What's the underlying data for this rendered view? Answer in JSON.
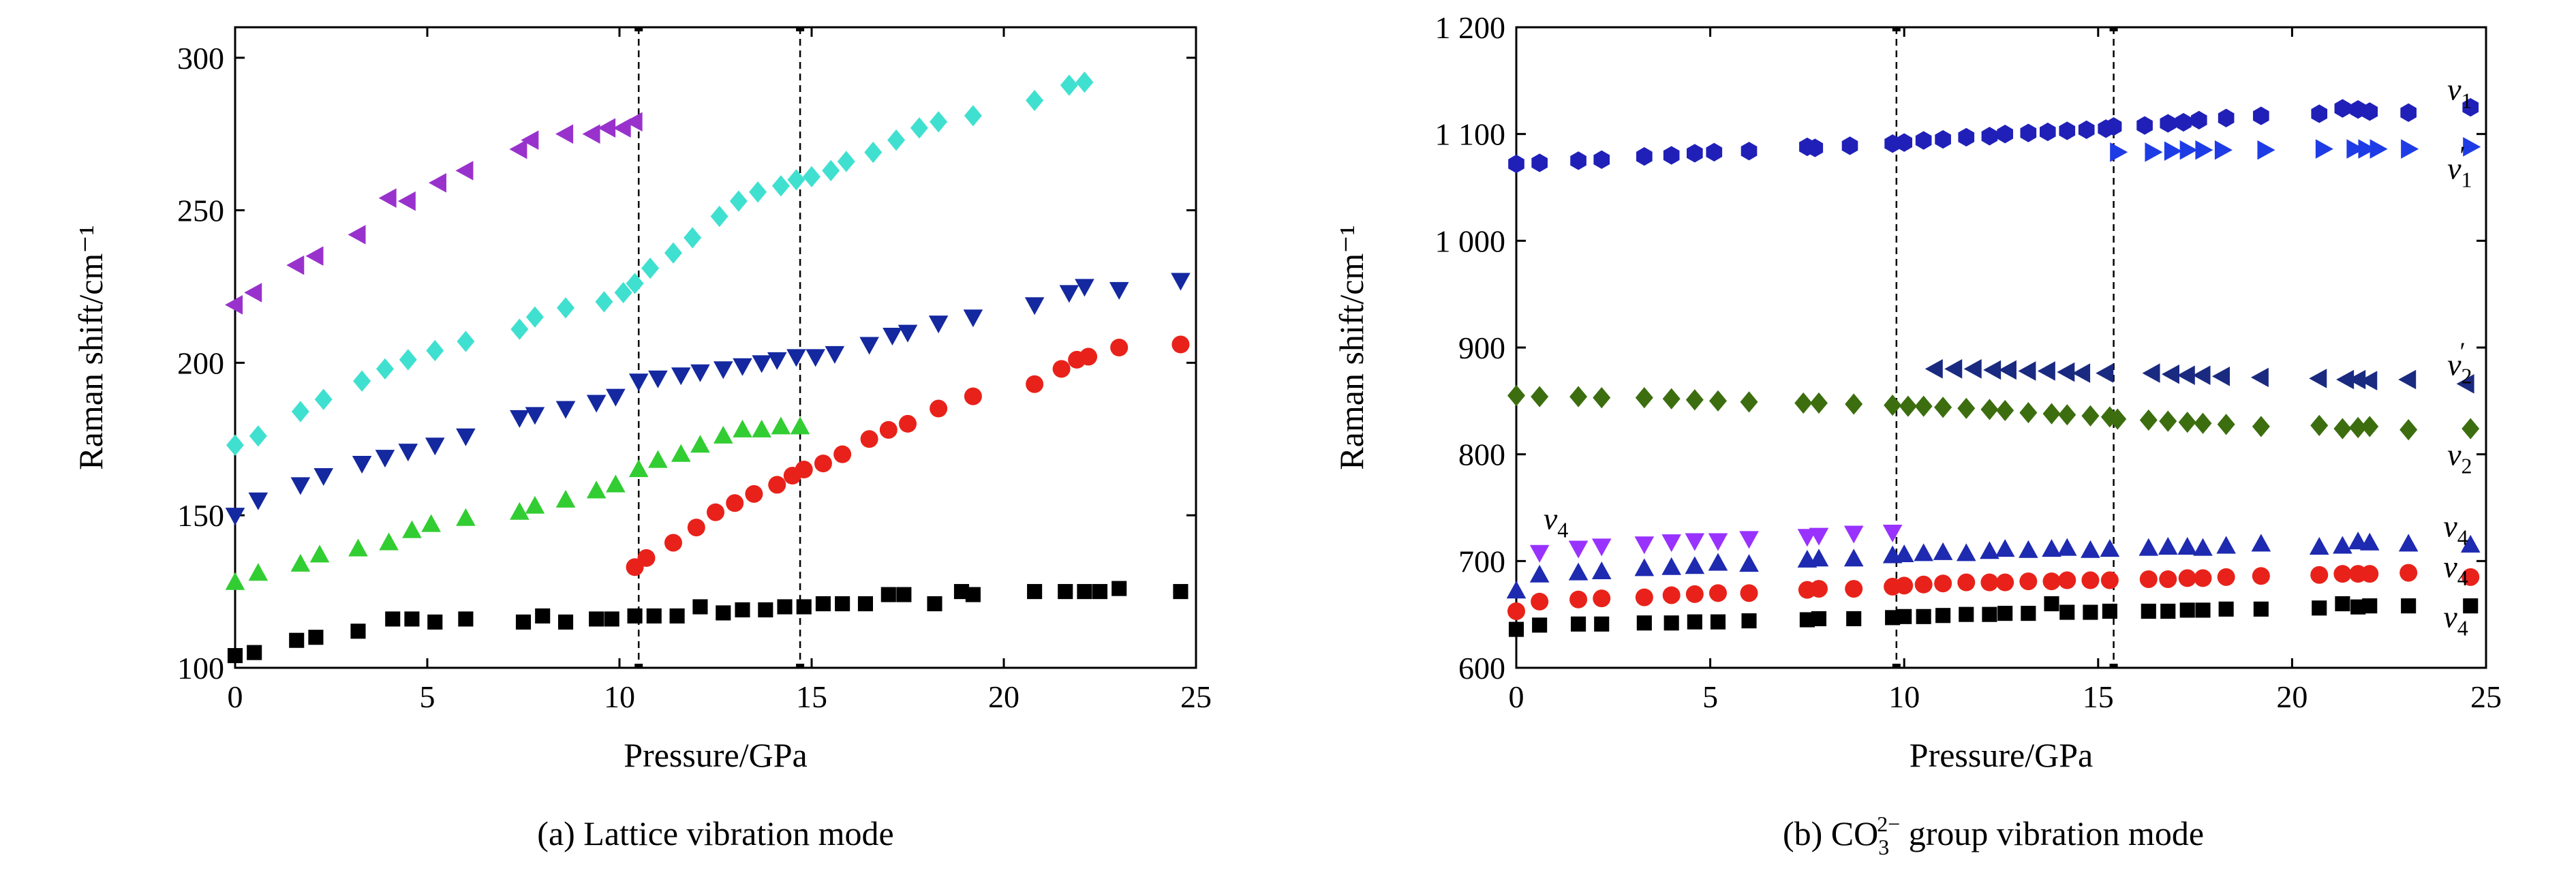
{
  "chart_data": [
    {
      "type": "scatter",
      "caption": "(a) Lattice vibration mode",
      "xlabel": "Pressure/GPa",
      "ylabel": "Raman shift/cm⁻¹",
      "xlim": [
        0,
        25
      ],
      "ylim": [
        100,
        310
      ],
      "xticks": [
        0,
        5,
        10,
        15,
        20,
        25
      ],
      "yticks": [
        100,
        150,
        200,
        250,
        300
      ],
      "vlines": [
        10.5,
        14.7
      ],
      "grid": false,
      "series": [
        {
          "marker": "triangle-left",
          "color": "#9932CC",
          "x": [
            0,
            0.5,
            1.6,
            2.1,
            3.2,
            4.0,
            4.5,
            5.3,
            6.0,
            7.4,
            7.7,
            8.6,
            9.3,
            9.7,
            10.1,
            10.4
          ],
          "y": [
            219,
            223,
            232,
            235,
            242,
            254,
            253,
            259,
            263,
            270,
            273,
            275,
            275,
            277,
            277,
            279
          ]
        },
        {
          "marker": "diamond",
          "color": "#40E0D0",
          "x": [
            0,
            0.6,
            1.7,
            2.3,
            3.3,
            3.9,
            4.5,
            5.2,
            6.0,
            7.4,
            7.8,
            8.6,
            9.6,
            10.1,
            10.4,
            10.8,
            11.4,
            11.9,
            12.6,
            13.1,
            13.6,
            14.2,
            14.6,
            15.0,
            15.5,
            15.9,
            16.6,
            17.2,
            17.8,
            18.3,
            19.2,
            20.8,
            21.7,
            22.1
          ],
          "y": [
            173,
            176,
            184,
            188,
            194,
            198,
            201,
            204,
            207,
            211,
            215,
            218,
            220,
            223,
            226,
            231,
            236,
            241,
            248,
            253,
            256,
            258,
            260,
            261,
            263,
            266,
            269,
            273,
            277,
            279,
            281,
            286,
            291,
            292
          ]
        },
        {
          "marker": "triangle-down",
          "color": "#1428A0",
          "x": [
            0,
            0.6,
            1.7,
            2.3,
            3.3,
            3.9,
            4.5,
            5.2,
            6.0,
            7.4,
            7.8,
            8.6,
            9.4,
            9.9,
            10.5,
            11.0,
            11.6,
            12.1,
            12.7,
            13.2,
            13.7,
            14.1,
            14.6,
            15.1,
            15.6,
            16.5,
            17.1,
            17.5,
            18.3,
            19.2,
            20.8,
            21.7,
            22.1,
            23.0,
            24.6
          ],
          "y": [
            150,
            155,
            160,
            163,
            167,
            169,
            171,
            173,
            176,
            182,
            183,
            185,
            187,
            189,
            194,
            195,
            196,
            197,
            198,
            199,
            200,
            201,
            202,
            202,
            203,
            206,
            209,
            210,
            213,
            215,
            219,
            223,
            225,
            224,
            227
          ]
        },
        {
          "marker": "triangle-up",
          "color": "#32CD32",
          "x": [
            0,
            0.6,
            1.7,
            2.2,
            3.2,
            4.0,
            4.6,
            5.1,
            6.0,
            7.4,
            7.8,
            8.6,
            9.4,
            9.9,
            10.5,
            11.0,
            11.6,
            12.1,
            12.7,
            13.2,
            13.7,
            14.2,
            14.7
          ],
          "y": [
            128,
            131,
            134,
            137,
            139,
            141,
            145,
            147,
            149,
            151,
            153,
            155,
            158,
            160,
            165,
            168,
            170,
            173,
            176,
            178,
            178,
            179,
            179
          ]
        },
        {
          "marker": "circle",
          "color": "#E8221A",
          "x": [
            10.4,
            10.7,
            11.4,
            12.0,
            12.5,
            13.0,
            13.5,
            14.1,
            14.5,
            14.8,
            15.3,
            15.8,
            16.5,
            17.0,
            17.5,
            18.3,
            19.2,
            20.8,
            21.5,
            21.9,
            22.2,
            23.0,
            24.6
          ],
          "y": [
            133,
            136,
            141,
            146,
            151,
            154,
            157,
            160,
            163,
            165,
            167,
            170,
            175,
            178,
            180,
            185,
            189,
            193,
            198,
            201,
            202,
            205,
            206
          ]
        },
        {
          "marker": "square",
          "color": "#000000",
          "x": [
            0,
            0.5,
            1.6,
            2.1,
            3.2,
            4.1,
            4.6,
            5.2,
            6.0,
            7.5,
            8.0,
            8.6,
            9.4,
            9.8,
            10.4,
            10.9,
            11.5,
            12.1,
            12.7,
            13.2,
            13.8,
            14.3,
            14.8,
            15.3,
            15.8,
            16.4,
            17.0,
            17.4,
            18.2,
            18.9,
            19.2,
            20.8,
            21.6,
            22.1,
            22.5,
            23.0,
            24.6
          ],
          "y": [
            104,
            105,
            109,
            110,
            112,
            116,
            116,
            115,
            116,
            115,
            117,
            115,
            116,
            116,
            117,
            117,
            117,
            120,
            118,
            119,
            119,
            120,
            120,
            121,
            121,
            121,
            124,
            124,
            121,
            125,
            124,
            125,
            125,
            125,
            125,
            126,
            125
          ]
        }
      ]
    },
    {
      "type": "scatter",
      "caption_parts": [
        "(b) CO",
        "3",
        "2−",
        " group vibration mode"
      ],
      "xlabel": "Pressure/GPa",
      "ylabel": "Raman shift/cm⁻¹",
      "xlim": [
        0,
        25
      ],
      "ylim": [
        600,
        1200
      ],
      "xticks": [
        0,
        5,
        10,
        15,
        20,
        25
      ],
      "yticks": [
        600,
        700,
        800,
        900,
        1000,
        1100,
        1200
      ],
      "ytick_labels": [
        "600",
        "700",
        "800",
        "900",
        "1 000",
        "1 100",
        "1 200"
      ],
      "vlines": [
        9.8,
        15.4
      ],
      "grid": false,
      "annotations": [
        {
          "base": "ν",
          "sub": "1",
          "prime": false,
          "x": 24.0,
          "y": 1132
        },
        {
          "base": "ν",
          "sub": "1",
          "prime": true,
          "x": 24.0,
          "y": 1058
        },
        {
          "base": "ν",
          "sub": "2",
          "prime": true,
          "x": 24.0,
          "y": 874
        },
        {
          "base": "ν",
          "sub": "2",
          "prime": false,
          "x": 24.0,
          "y": 790
        },
        {
          "base": "ν",
          "sub": "4",
          "prime": false,
          "x": 0.7,
          "y": 730
        },
        {
          "base": "ν",
          "sub": "4",
          "prime": false,
          "x": 23.9,
          "y": 723
        },
        {
          "base": "ν",
          "sub": "4",
          "prime": false,
          "x": 23.9,
          "y": 685
        },
        {
          "base": "ν",
          "sub": "4",
          "prime": false,
          "x": 23.9,
          "y": 638
        }
      ],
      "series": [
        {
          "marker": "hexagon",
          "color": "#2020B8",
          "x": [
            0,
            0.6,
            1.6,
            2.2,
            3.3,
            4.0,
            4.6,
            5.1,
            6.0,
            7.5,
            7.7,
            8.6,
            9.7,
            10.0,
            10.5,
            11.0,
            11.6,
            12.2,
            12.6,
            13.2,
            13.7,
            14.2,
            14.7,
            15.2,
            15.4,
            16.2,
            16.8,
            17.2,
            17.6,
            18.3,
            19.2,
            20.7,
            21.3,
            21.7,
            22.0,
            23.0,
            24.6
          ],
          "y": [
            1072,
            1073,
            1075,
            1076,
            1079,
            1080,
            1082,
            1083,
            1084,
            1088,
            1087,
            1089,
            1091,
            1092,
            1094,
            1095,
            1097,
            1098,
            1100,
            1101,
            1102,
            1103,
            1104,
            1105,
            1107,
            1108,
            1110,
            1111,
            1113,
            1115,
            1117,
            1119,
            1124,
            1123,
            1121,
            1120,
            1125
          ]
        },
        {
          "marker": "triangle-right",
          "color": "#1E3CE6",
          "x": [
            15.5,
            16.4,
            16.9,
            17.3,
            17.7,
            18.2,
            19.3,
            20.8,
            21.6,
            21.9,
            22.2,
            23.0,
            24.6
          ],
          "y": [
            1083,
            1083,
            1084,
            1085,
            1085,
            1085,
            1085,
            1086,
            1086,
            1086,
            1086,
            1086,
            1088
          ]
        },
        {
          "marker": "triangle-left",
          "color": "#1A2A80",
          "x": [
            10.8,
            11.3,
            11.8,
            12.3,
            12.7,
            13.2,
            13.7,
            14.2,
            14.6,
            15.2,
            16.4,
            16.9,
            17.3,
            17.7,
            18.2,
            19.2,
            20.7,
            21.4,
            21.7,
            22.0,
            23.0,
            24.5
          ],
          "y": [
            880,
            880,
            880,
            879,
            879,
            878,
            878,
            877,
            876,
            876,
            876,
            875,
            874,
            874,
            873,
            872,
            871,
            870,
            870,
            869,
            870,
            866
          ]
        },
        {
          "marker": "diamond",
          "color": "#3C6E10",
          "x": [
            0,
            0.6,
            1.6,
            2.2,
            3.3,
            4.0,
            4.6,
            5.2,
            6.0,
            7.4,
            7.8,
            8.7,
            9.7,
            10.1,
            10.5,
            11.0,
            11.6,
            12.2,
            12.6,
            13.2,
            13.8,
            14.2,
            14.8,
            15.3,
            15.5,
            16.3,
            16.8,
            17.3,
            17.7,
            18.3,
            19.2,
            20.7,
            21.3,
            21.7,
            22.0,
            23.0,
            24.6
          ],
          "y": [
            855,
            854,
            854,
            853,
            853,
            852,
            851,
            850,
            849,
            848,
            848,
            847,
            846,
            845,
            845,
            844,
            843,
            842,
            841,
            839,
            838,
            837,
            836,
            835,
            833,
            832,
            831,
            830,
            829,
            828,
            826,
            827,
            824,
            825,
            826,
            823,
            824
          ]
        },
        {
          "marker": "triangle-down",
          "color": "#9932FF",
          "x": [
            0.6,
            1.6,
            2.2,
            3.3,
            4.0,
            4.6,
            5.2,
            6.0,
            7.5,
            7.8,
            8.7,
            9.7
          ],
          "y": [
            708,
            712,
            714,
            716,
            718,
            719,
            719,
            721,
            723,
            724,
            726,
            727
          ]
        },
        {
          "marker": "triangle-up",
          "color": "#1E2AB0",
          "x": [
            0,
            0.6,
            1.6,
            2.2,
            3.3,
            4.0,
            4.6,
            5.2,
            6.0,
            7.5,
            7.8,
            8.7,
            9.7,
            10.0,
            10.5,
            11.0,
            11.6,
            12.2,
            12.6,
            13.2,
            13.8,
            14.2,
            14.8,
            15.3,
            16.3,
            16.8,
            17.3,
            17.7,
            18.3,
            19.2,
            20.7,
            21.3,
            21.7,
            22.0,
            23.0,
            24.6
          ],
          "y": [
            672,
            687,
            689,
            690,
            693,
            694,
            695,
            698,
            697,
            701,
            702,
            702,
            705,
            706,
            707,
            708,
            707,
            709,
            711,
            710,
            711,
            712,
            710,
            711,
            712,
            713,
            713,
            712,
            714,
            716,
            713,
            714,
            718,
            717,
            716,
            715
          ]
        },
        {
          "marker": "circle",
          "color": "#E8221A",
          "x": [
            0,
            0.6,
            1.6,
            2.2,
            3.3,
            4.0,
            4.6,
            5.2,
            6.0,
            7.5,
            7.8,
            8.7,
            9.7,
            10.0,
            10.5,
            11.0,
            11.6,
            12.2,
            12.6,
            13.2,
            13.8,
            14.2,
            14.8,
            15.3,
            16.3,
            16.8,
            17.3,
            17.7,
            18.3,
            19.2,
            20.7,
            21.3,
            21.7,
            22.0,
            23.0,
            24.6
          ],
          "y": [
            653,
            662,
            664,
            665,
            666,
            668,
            669,
            670,
            670,
            673,
            674,
            674,
            676,
            677,
            678,
            679,
            680,
            680,
            680,
            681,
            681,
            682,
            682,
            682,
            683,
            683,
            684,
            684,
            685,
            686,
            687,
            688,
            688,
            688,
            689,
            685
          ]
        },
        {
          "marker": "square",
          "color": "#000000",
          "x": [
            0,
            0.6,
            1.6,
            2.2,
            3.3,
            4.0,
            4.6,
            5.2,
            6.0,
            7.5,
            7.8,
            8.7,
            9.7,
            10.0,
            10.5,
            11.0,
            11.6,
            12.2,
            12.6,
            13.2,
            13.8,
            14.2,
            14.8,
            15.3,
            16.3,
            16.8,
            17.3,
            17.7,
            18.3,
            19.2,
            20.7,
            21.3,
            21.7,
            22.0,
            23.0,
            24.6
          ],
          "y": [
            636,
            640,
            641,
            641,
            642,
            642,
            643,
            643,
            644,
            645,
            646,
            646,
            647,
            648,
            648,
            649,
            650,
            650,
            651,
            651,
            660,
            652,
            652,
            653,
            653,
            653,
            654,
            654,
            655,
            655,
            656,
            660,
            657,
            658,
            658,
            658
          ]
        }
      ]
    }
  ]
}
